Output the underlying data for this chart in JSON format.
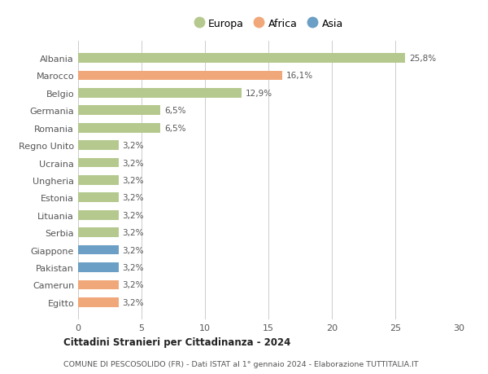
{
  "categories": [
    "Albania",
    "Marocco",
    "Belgio",
    "Germania",
    "Romania",
    "Regno Unito",
    "Ucraina",
    "Ungheria",
    "Estonia",
    "Lituania",
    "Serbia",
    "Giappone",
    "Pakistan",
    "Camerun",
    "Egitto"
  ],
  "values": [
    25.8,
    16.1,
    12.9,
    6.5,
    6.5,
    3.2,
    3.2,
    3.2,
    3.2,
    3.2,
    3.2,
    3.2,
    3.2,
    3.2,
    3.2
  ],
  "labels": [
    "25,8%",
    "16,1%",
    "12,9%",
    "6,5%",
    "6,5%",
    "3,2%",
    "3,2%",
    "3,2%",
    "3,2%",
    "3,2%",
    "3,2%",
    "3,2%",
    "3,2%",
    "3,2%",
    "3,2%"
  ],
  "colors": [
    "#b5c98e",
    "#f0a87a",
    "#b5c98e",
    "#b5c98e",
    "#b5c98e",
    "#b5c98e",
    "#b5c98e",
    "#b5c98e",
    "#b5c98e",
    "#b5c98e",
    "#b5c98e",
    "#6b9fc5",
    "#6b9fc5",
    "#f0a87a",
    "#f0a87a"
  ],
  "legend_labels": [
    "Europa",
    "Africa",
    "Asia"
  ],
  "legend_colors": [
    "#b5c98e",
    "#f0a87a",
    "#6b9fc5"
  ],
  "xlim": [
    0,
    30
  ],
  "xticks": [
    0,
    5,
    10,
    15,
    20,
    25,
    30
  ],
  "title1": "Cittadini Stranieri per Cittadinanza - 2024",
  "title2": "COMUNE DI PESCOSOLIDO (FR) - Dati ISTAT al 1° gennaio 2024 - Elaborazione TUTTITALIA.IT",
  "bg_color": "#ffffff",
  "grid_color": "#cccccc"
}
